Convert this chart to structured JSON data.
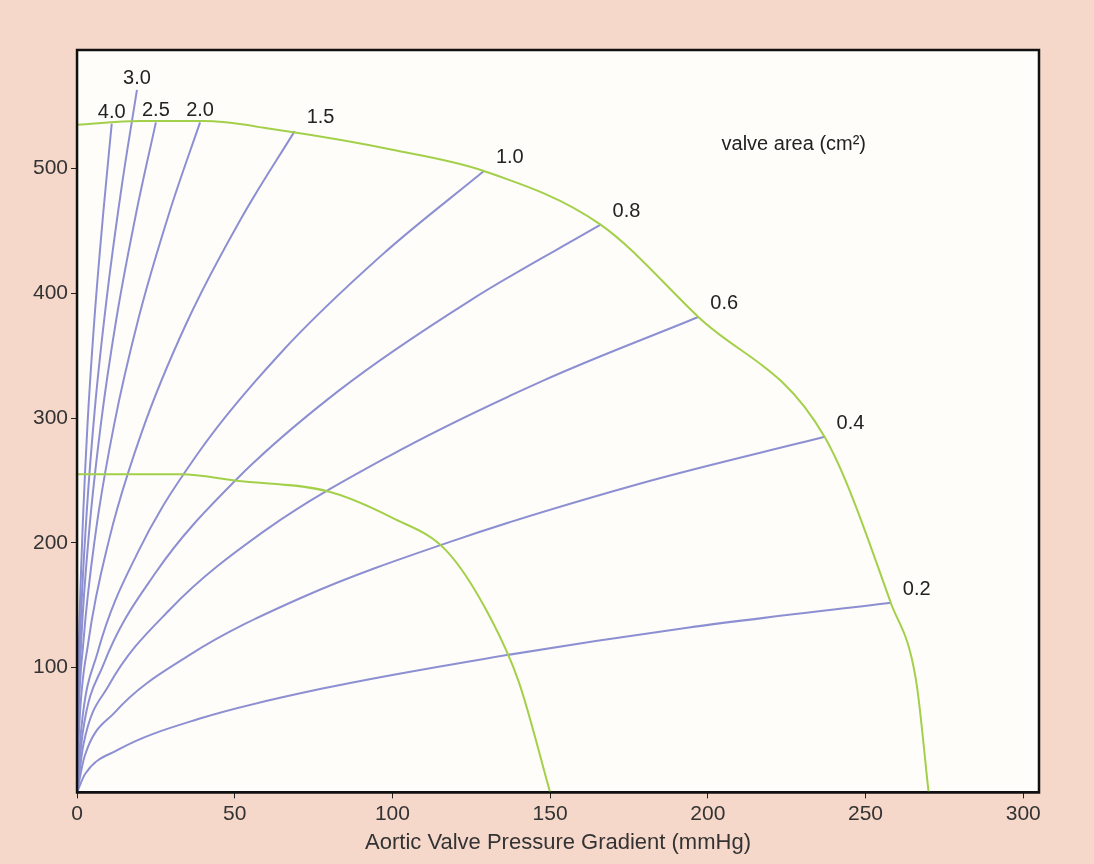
{
  "chart_data": {
    "type": "line",
    "xlabel": "Aortic Valve Pressure Gradient (mmHg)",
    "xlim": [
      0,
      305
    ],
    "ylim": [
      0,
      595
    ],
    "xticks": [
      0,
      50,
      100,
      150,
      200,
      250,
      300
    ],
    "yticks": [
      100,
      200,
      300,
      400,
      500
    ],
    "grid": false,
    "legend": false,
    "marker": "none",
    "line_style": "solid",
    "series": [
      {
        "color": "#a3d04a",
        "x": [
          0,
          20,
          40,
          66,
          100,
          129,
          166,
          197,
          237,
          258,
          266,
          270
        ],
        "values": [
          535,
          538,
          538,
          530,
          515,
          498,
          455,
          381,
          285,
          152,
          90,
          0
        ]
      },
      {
        "color": "#a3d04a",
        "x": [
          0,
          33,
          50,
          80,
          100,
          117,
          130,
          140,
          150
        ],
        "values": [
          255,
          255,
          250,
          241,
          220,
          194,
          145,
          89,
          0
        ]
      },
      {
        "name": "4.0",
        "color": "#8c90d2",
        "x": [
          0,
          0.1,
          0.6,
          1.7,
          3.3,
          5.5,
          8.3,
          11
        ],
        "values": [
          0,
          54,
          120,
          207,
          294,
          379,
          464,
          536
        ]
      },
      {
        "name": "3.0",
        "color": "#8c90d2",
        "x": [
          0,
          0.2,
          1,
          2.9,
          5.7,
          9.5,
          14.3,
          19
        ],
        "values": [
          0,
          56,
          126,
          218,
          309,
          398,
          488,
          563
        ]
      },
      {
        "name": "2.5",
        "color": "#8c90d2",
        "x": [
          0,
          0.3,
          1.3,
          3.8,
          7.5,
          12.5,
          18.8,
          25
        ],
        "values": [
          0,
          54,
          120,
          208,
          294,
          380,
          465,
          537
        ]
      },
      {
        "name": "2.0",
        "color": "#8c90d2",
        "x": [
          0,
          0.4,
          2,
          5.9,
          11.7,
          19.5,
          29.3,
          39
        ],
        "values": [
          0,
          54,
          120,
          208,
          294,
          380,
          465,
          537
        ]
      },
      {
        "name": "1.5",
        "color": "#8c90d2",
        "x": [
          0,
          0.7,
          3.5,
          10.4,
          20.7,
          34.5,
          51.8,
          69
        ],
        "values": [
          0,
          53,
          119,
          205,
          290,
          375,
          459,
          530
        ]
      },
      {
        "name": "1.0",
        "color": "#8c90d2",
        "x": [
          0,
          1.3,
          6.5,
          19.4,
          38.7,
          64.5,
          96.8,
          129
        ],
        "values": [
          0,
          50,
          112,
          193,
          273,
          352,
          431,
          498
        ]
      },
      {
        "name": "0.8",
        "color": "#8c90d2",
        "x": [
          0,
          1.7,
          8.3,
          24.9,
          49.8,
          83,
          124.5,
          166
        ],
        "values": [
          0,
          46,
          102,
          176,
          249,
          322,
          394,
          455
        ]
      },
      {
        "name": "0.6",
        "color": "#8c90d2",
        "x": [
          0,
          2,
          9.9,
          29.6,
          59.1,
          98.5,
          147.8,
          197
        ],
        "values": [
          0,
          38,
          85,
          147,
          209,
          269,
          330,
          381
        ]
      },
      {
        "name": "0.4",
        "color": "#8c90d2",
        "x": [
          0,
          2.4,
          11.9,
          35.6,
          71.1,
          118.5,
          177.8,
          237
        ],
        "values": [
          0,
          29,
          64,
          110,
          156,
          201,
          247,
          285
        ]
      },
      {
        "name": "0.2",
        "color": "#8c90d2",
        "x": [
          0,
          2.6,
          12.9,
          38.7,
          77.4,
          129,
          193.5,
          258
        ],
        "values": [
          0,
          15,
          34,
          59,
          83,
          107,
          132,
          152
        ]
      }
    ],
    "annotations": [
      "valve area (cm²)"
    ]
  }
}
